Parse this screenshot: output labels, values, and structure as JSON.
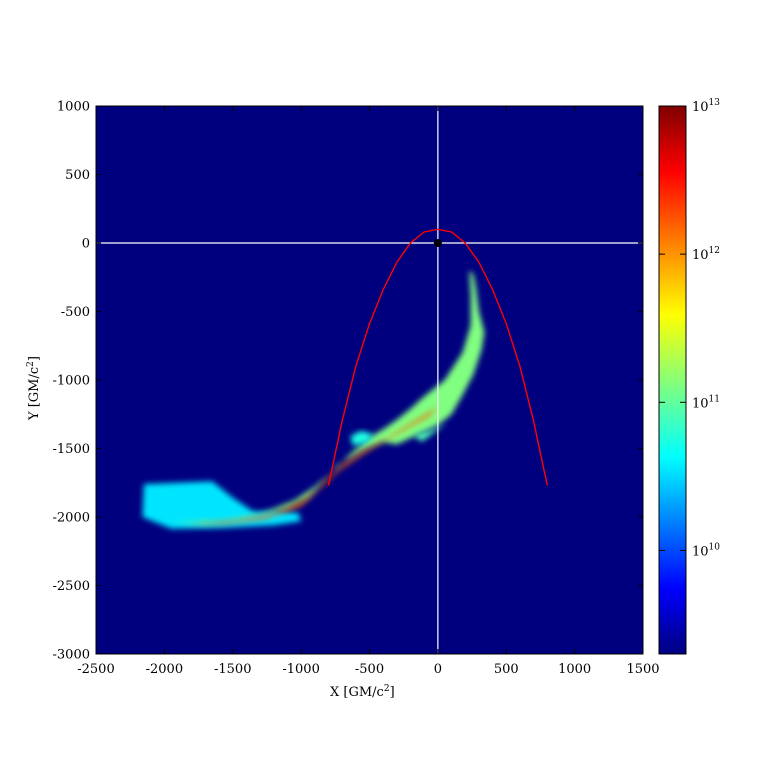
{
  "chart_data": {
    "type": "heatmap",
    "xlabel": "X  [GM/c",
    "ylabel": "Y  [GM/c",
    "label_exponent": "2",
    "label_suffix": "]",
    "xlim": [
      -2500,
      1500
    ],
    "ylim": [
      -3000,
      1000
    ],
    "x_ticks": [
      -2500,
      -2000,
      -1500,
      -1000,
      -500,
      0,
      500,
      1000,
      1500
    ],
    "y_ticks": [
      1000,
      500,
      0,
      -500,
      -1000,
      -1500,
      -2000,
      -2500,
      -3000
    ],
    "x_tick_labels": [
      "-2500",
      "-2000",
      "-1500",
      "-1000",
      "-500",
      "0",
      "500",
      "1000",
      "1500"
    ],
    "y_tick_labels": [
      "1000",
      "500",
      "0",
      "-500",
      "-1000",
      "-1500",
      "-2000",
      "-2500",
      "-3000"
    ],
    "background_color": "#00007f",
    "grid": false,
    "crosshair": {
      "x": 0,
      "y": 0,
      "color": "#ffffff"
    },
    "black_hole": {
      "x": 0,
      "y": 0,
      "color": "#000000"
    },
    "orbit": {
      "color": "#ff0000",
      "shape": "parabola",
      "points": [
        [
          -800,
          -1770
        ],
        [
          -700,
          -1300
        ],
        [
          -600,
          -900
        ],
        [
          -500,
          -590
        ],
        [
          -400,
          -340
        ],
        [
          -300,
          -140
        ],
        [
          -200,
          0
        ],
        [
          -100,
          80
        ],
        [
          0,
          100
        ],
        [
          100,
          80
        ],
        [
          200,
          0
        ],
        [
          300,
          -140
        ],
        [
          400,
          -340
        ],
        [
          500,
          -590
        ],
        [
          600,
          -900
        ],
        [
          700,
          -1300
        ],
        [
          800,
          -1770
        ]
      ]
    },
    "stream": {
      "description_colors": [
        "#00007f",
        "#0000ff",
        "#00ffff",
        "#ffff00",
        "#ff0000",
        "#7f0000"
      ],
      "regions": [
        {
          "level": 0.35,
          "points": [
            [
              -2150,
              -1760
            ],
            [
              -1650,
              -1740
            ],
            [
              -1500,
              -1860
            ],
            [
              -1350,
              -1960
            ],
            [
              -1150,
              -1960
            ],
            [
              -1020,
              -1970
            ],
            [
              -1000,
              -2030
            ],
            [
              -1200,
              -2060
            ],
            [
              -1600,
              -2080
            ],
            [
              -1950,
              -2085
            ],
            [
              -2160,
              -2000
            ]
          ]
        },
        {
          "level": 0.5,
          "points": [
            [
              -1950,
              -2040
            ],
            [
              -1600,
              -2030
            ],
            [
              -1300,
              -1980
            ],
            [
              -1050,
              -1880
            ],
            [
              -900,
              -1780
            ],
            [
              -780,
              -1680
            ],
            [
              -740,
              -1620
            ],
            [
              -660,
              -1580
            ],
            [
              -520,
              -1500
            ],
            [
              -400,
              -1450
            ],
            [
              -300,
              -1470
            ],
            [
              -150,
              -1400
            ],
            [
              0,
              -1330
            ],
            [
              100,
              -1250
            ],
            [
              180,
              -1110
            ],
            [
              260,
              -960
            ],
            [
              320,
              -780
            ],
            [
              340,
              -650
            ],
            [
              300,
              -500
            ],
            [
              280,
              -340
            ],
            [
              260,
              -230
            ],
            [
              230,
              -200
            ],
            [
              240,
              -380
            ],
            [
              240,
              -600
            ],
            [
              180,
              -800
            ],
            [
              50,
              -1000
            ],
            [
              -100,
              -1120
            ],
            [
              -200,
              -1210
            ],
            [
              -300,
              -1290
            ],
            [
              -400,
              -1360
            ],
            [
              -500,
              -1420
            ],
            [
              -640,
              -1540
            ],
            [
              -760,
              -1660
            ],
            [
              -840,
              -1750
            ],
            [
              -950,
              -1860
            ],
            [
              -1100,
              -1940
            ],
            [
              -1400,
              -2010
            ],
            [
              -1700,
              -2050
            ]
          ]
        },
        {
          "level": 0.4,
          "points": [
            [
              -640,
              -1410
            ],
            [
              -560,
              -1370
            ],
            [
              -470,
              -1400
            ],
            [
              -520,
              -1460
            ],
            [
              -620,
              -1480
            ]
          ]
        },
        {
          "level": 0.45,
          "points": [
            [
              -180,
              -1400
            ],
            [
              -30,
              -1360
            ],
            [
              60,
              -1320
            ],
            [
              -120,
              -1450
            ]
          ]
        },
        {
          "level": 0.78,
          "points": [
            [
              -1850,
              -2055
            ],
            [
              -1500,
              -2030
            ],
            [
              -1200,
              -1980
            ],
            [
              -1000,
              -1890
            ],
            [
              -870,
              -1790
            ],
            [
              -800,
              -1720
            ],
            [
              -700,
              -1620
            ],
            [
              -550,
              -1520
            ],
            [
              -380,
              -1430
            ],
            [
              -200,
              -1320
            ],
            [
              -50,
              -1230
            ],
            [
              0,
              -1190
            ],
            [
              -60,
              -1260
            ],
            [
              -220,
              -1350
            ],
            [
              -400,
              -1450
            ],
            [
              -560,
              -1550
            ],
            [
              -720,
              -1660
            ],
            [
              -860,
              -1790
            ],
            [
              -1000,
              -1920
            ],
            [
              -1250,
              -2010
            ],
            [
              -1550,
              -2050
            ]
          ]
        },
        {
          "level": 0.98,
          "points": [
            [
              -870,
              -1800
            ],
            [
              -790,
              -1700
            ],
            [
              -750,
              -1650
            ],
            [
              -820,
              -1760
            ]
          ]
        }
      ]
    },
    "colorbar": {
      "scale": "log",
      "min": 2000000000.0,
      "max": 10000000000000.0,
      "tick_values": [
        10000000000000.0,
        1000000000000.0,
        100000000000.0,
        10000000000.0
      ],
      "tick_bases": [
        "10",
        "10",
        "10",
        "10"
      ],
      "tick_exponents": [
        "13",
        "12",
        "11",
        "10"
      ],
      "colormap": "jet"
    }
  }
}
